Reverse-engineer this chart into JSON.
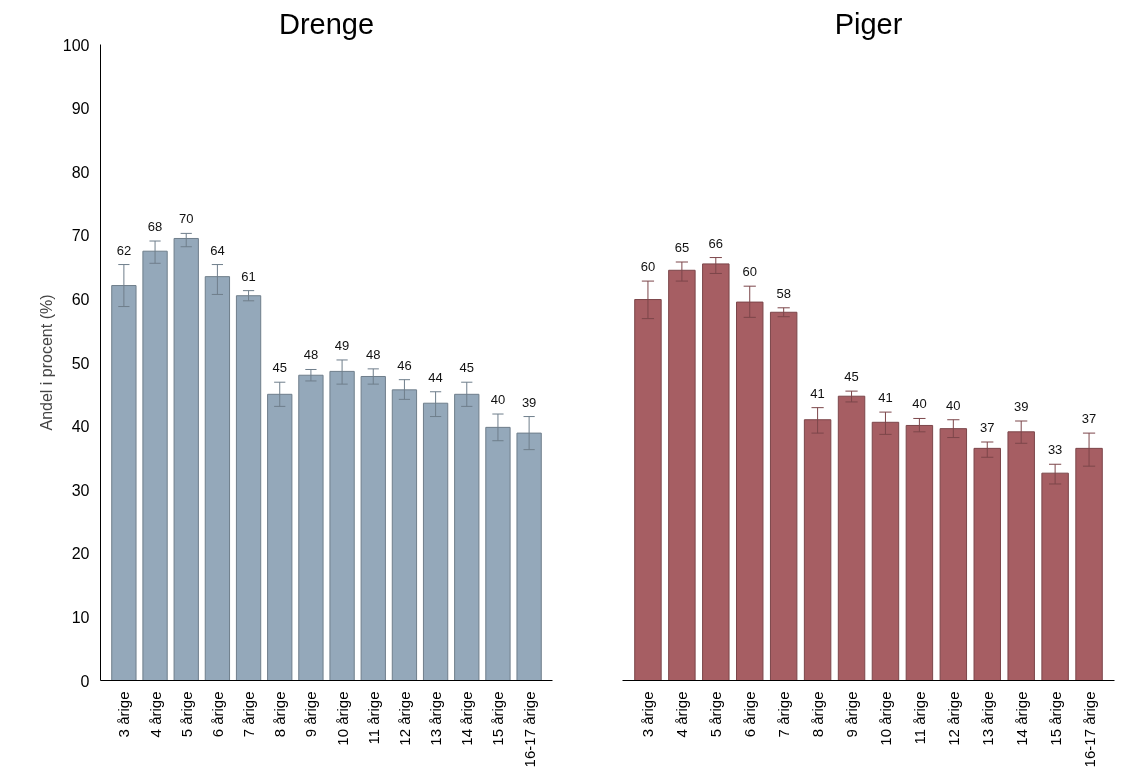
{
  "chart_data": [
    {
      "type": "bar",
      "title": "Drenge",
      "ylabel": "Andel i procent (%)",
      "categories": [
        "3 årige",
        "4 årige",
        "5 årige",
        "6 årige",
        "7 årige",
        "8 årige",
        "9 årige",
        "10 årige",
        "11 årige",
        "12 årige",
        "13 årige",
        "14 årige",
        "15 årige",
        "16-17 årige"
      ],
      "series": [
        {
          "color": "#94a8ba",
          "values": [
            62.1,
            67.5,
            69.5,
            63.5,
            60.5,
            45.0,
            48.0,
            48.6,
            47.8,
            45.7,
            43.6,
            45.0,
            39.8,
            38.9
          ],
          "errors": [
            [
              58.8,
              65.4
            ],
            [
              65.6,
              69.1
            ],
            [
              68.2,
              70.3
            ],
            [
              60.7,
              65.4
            ],
            [
              59.7,
              61.3
            ],
            [
              43.1,
              46.9
            ],
            [
              47.1,
              48.9
            ],
            [
              46.6,
              50.4
            ],
            [
              46.6,
              49.0
            ],
            [
              44.2,
              47.3
            ],
            [
              41.5,
              45.4
            ],
            [
              43.1,
              46.9
            ],
            [
              37.7,
              41.9
            ],
            [
              36.3,
              41.5
            ]
          ],
          "value_labels": [
            "62",
            "68",
            "70",
            "64",
            "61",
            "45",
            "48",
            "49",
            "48",
            "46",
            "44",
            "45",
            "40",
            "39"
          ]
        }
      ],
      "ylim": [
        0,
        100
      ],
      "yticks": [
        0,
        10,
        20,
        30,
        40,
        50,
        60,
        70,
        80,
        90,
        100
      ],
      "grid": false
    },
    {
      "type": "bar",
      "title": "Piger",
      "categories": [
        "3 årige",
        "4 årige",
        "5 årige",
        "6 årige",
        "7 årige",
        "8 årige",
        "9 årige",
        "10 årige",
        "11 årige",
        "12 årige",
        "13 årige",
        "14 årige",
        "15 årige",
        "16-17 årige"
      ],
      "series": [
        {
          "color": "#a65e63",
          "values": [
            59.9,
            64.5,
            65.5,
            59.5,
            57.9,
            41.0,
            44.7,
            40.6,
            40.1,
            39.6,
            36.5,
            39.1,
            32.6,
            36.5
          ],
          "errors": [
            [
              56.9,
              62.8
            ],
            [
              62.8,
              65.8
            ],
            [
              64.0,
              66.5
            ],
            [
              57.1,
              62.0
            ],
            [
              57.2,
              58.6
            ],
            [
              38.9,
              42.9
            ],
            [
              43.8,
              45.5
            ],
            [
              38.7,
              42.2
            ],
            [
              39.1,
              41.2
            ],
            [
              38.2,
              41.0
            ],
            [
              35.1,
              37.5
            ],
            [
              37.3,
              40.8
            ],
            [
              30.9,
              34.0
            ],
            [
              33.7,
              38.9
            ]
          ],
          "value_labels": [
            "60",
            "65",
            "66",
            "60",
            "58",
            "41",
            "45",
            "41",
            "40",
            "40",
            "37",
            "39",
            "33",
            "37"
          ]
        }
      ],
      "ylim": [
        0,
        100
      ],
      "tick_labels": "x",
      "grid": false
    }
  ]
}
